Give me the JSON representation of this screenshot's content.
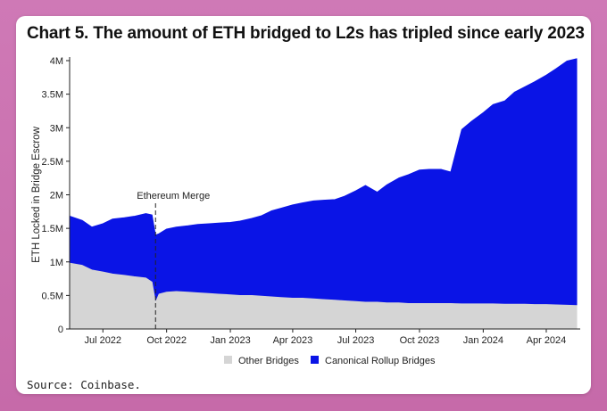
{
  "title": "Chart 5. The amount of ETH bridged to L2s has tripled since early 2023",
  "source": "Source: Coinbase.",
  "colors": {
    "other": "#d5d5d5",
    "canonical": "#0a14e6",
    "background": "#c66aa9"
  },
  "chart_data": {
    "type": "area",
    "stacked": true,
    "ylabel": "ETH Locked in Bridge Escrow",
    "xlabel": "",
    "ylim": [
      0,
      4000000
    ],
    "yticks": [
      0,
      500000,
      1000000,
      1500000,
      2000000,
      2500000,
      3000000,
      3500000,
      4000000
    ],
    "ytick_labels": [
      "0",
      "0.5M",
      "1M",
      "1.5M",
      "2M",
      "2.5M",
      "3M",
      "3.5M",
      "4M"
    ],
    "xlim": [
      "2022-05-14",
      "2024-05-20"
    ],
    "xticks": [
      "2022-07-01",
      "2022-10-01",
      "2023-01-01",
      "2023-04-01",
      "2023-07-01",
      "2023-10-01",
      "2024-01-01",
      "2024-04-01"
    ],
    "xtick_labels": [
      "Jul 2022",
      "Oct 2022",
      "Jan 2023",
      "Apr 2023",
      "Jul 2023",
      "Oct 2023",
      "Jan 2024",
      "Apr 2024"
    ],
    "legend": {
      "position": "bottom",
      "entries": [
        "Other Bridges",
        "Canonical Rollup Bridges"
      ]
    },
    "grid": false,
    "annotations": [
      {
        "text": "Ethereum Merge",
        "x": "2022-09-15"
      }
    ],
    "x": [
      "2022-05-15",
      "2022-06-01",
      "2022-06-15",
      "2022-07-01",
      "2022-07-15",
      "2022-08-01",
      "2022-08-15",
      "2022-09-01",
      "2022-09-10",
      "2022-09-15",
      "2022-09-20",
      "2022-10-01",
      "2022-10-15",
      "2022-11-01",
      "2022-11-15",
      "2022-12-01",
      "2022-12-15",
      "2023-01-01",
      "2023-01-15",
      "2023-02-01",
      "2023-02-15",
      "2023-03-01",
      "2023-03-15",
      "2023-04-01",
      "2023-04-15",
      "2023-05-01",
      "2023-05-15",
      "2023-06-01",
      "2023-06-15",
      "2023-07-01",
      "2023-07-15",
      "2023-08-01",
      "2023-08-15",
      "2023-09-01",
      "2023-09-15",
      "2023-10-01",
      "2023-10-15",
      "2023-11-01",
      "2023-11-15",
      "2023-12-01",
      "2023-12-15",
      "2024-01-01",
      "2024-01-15",
      "2024-02-01",
      "2024-02-15",
      "2024-03-01",
      "2024-03-15",
      "2024-04-01",
      "2024-04-15",
      "2024-05-01",
      "2024-05-15"
    ],
    "series": [
      {
        "name": "Other Bridges",
        "values": [
          980000,
          950000,
          880000,
          850000,
          820000,
          800000,
          780000,
          760000,
          700000,
          400000,
          520000,
          550000,
          560000,
          550000,
          540000,
          530000,
          520000,
          510000,
          500000,
          500000,
          490000,
          480000,
          470000,
          460000,
          460000,
          450000,
          440000,
          430000,
          420000,
          410000,
          400000,
          400000,
          390000,
          390000,
          380000,
          380000,
          380000,
          380000,
          380000,
          375000,
          375000,
          375000,
          375000,
          370000,
          370000,
          370000,
          365000,
          365000,
          360000,
          355000,
          350000
        ]
      },
      {
        "name": "Canonical Rollup Bridges",
        "values": [
          700000,
          670000,
          640000,
          720000,
          820000,
          860000,
          900000,
          960000,
          1000000,
          1000000,
          900000,
          940000,
          960000,
          990000,
          1020000,
          1040000,
          1060000,
          1080000,
          1110000,
          1150000,
          1200000,
          1280000,
          1330000,
          1390000,
          1420000,
          1460000,
          1480000,
          1500000,
          1560000,
          1650000,
          1740000,
          1640000,
          1760000,
          1860000,
          1920000,
          1990000,
          2000000,
          2000000,
          1960000,
          2600000,
          2720000,
          2850000,
          2970000,
          3030000,
          3160000,
          3240000,
          3320000,
          3420000,
          3520000,
          3640000,
          3680000
        ]
      }
    ]
  }
}
